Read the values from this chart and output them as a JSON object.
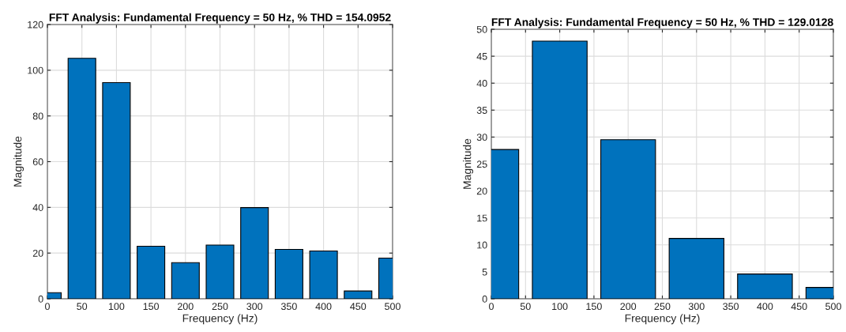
{
  "chart_data": [
    {
      "type": "bar",
      "title": "FFT Analysis: Fundamental Frequency = 50 Hz, % THD = 154.0952",
      "xlabel": "Frequency (Hz)",
      "ylabel": "Magnitude",
      "x": [
        0,
        50,
        100,
        150,
        200,
        250,
        300,
        350,
        400,
        450,
        500
      ],
      "values": [
        2.7,
        105.2,
        94.6,
        23,
        15.8,
        23.5,
        39.9,
        21.6,
        20.9,
        3.4,
        17.8
      ],
      "color": "#0072bd",
      "xlim": [
        0,
        500
      ],
      "xticks": [
        0,
        50,
        100,
        150,
        200,
        250,
        300,
        350,
        400,
        450,
        500
      ],
      "ylim": [
        0,
        120
      ],
      "yticks": [
        0,
        20,
        40,
        60,
        80,
        100,
        120
      ],
      "grid": true
    },
    {
      "type": "bar",
      "title": "FFT Analysis: Fundamental Frequency = 50 Hz, % THD = 129.0128",
      "xlabel": "Frequency (Hz)",
      "ylabel": "Magnitude",
      "x": [
        0,
        100,
        200,
        300,
        400,
        500
      ],
      "values": [
        27.7,
        47.8,
        29.5,
        11.2,
        4.6,
        2.1
      ],
      "color": "#0072bd",
      "xlim": [
        0,
        500
      ],
      "xticks": [
        0,
        50,
        100,
        150,
        200,
        250,
        300,
        350,
        400,
        450,
        500
      ],
      "ylim": [
        0,
        50
      ],
      "yticks": [
        0,
        5,
        10,
        15,
        20,
        25,
        30,
        35,
        40,
        45,
        50
      ],
      "grid": true
    }
  ]
}
